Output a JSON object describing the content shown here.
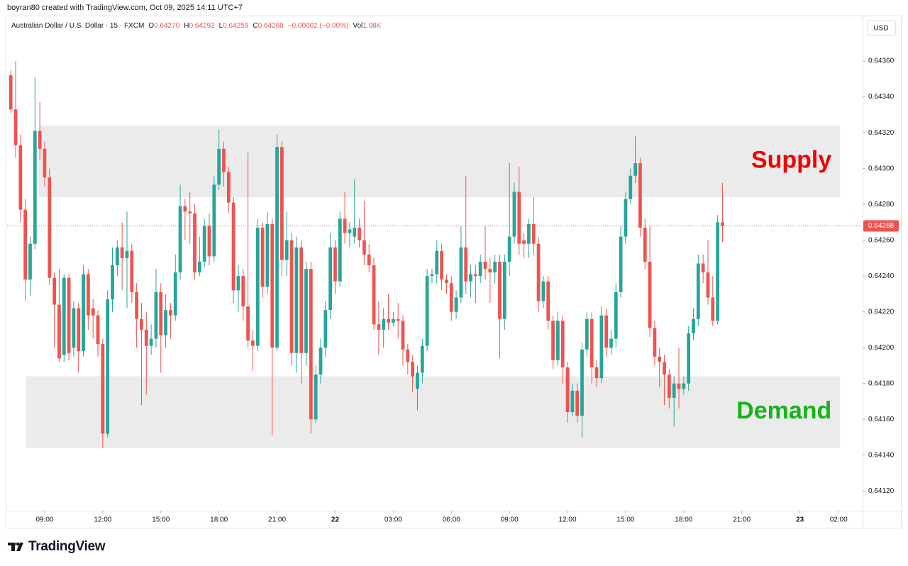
{
  "header": {
    "attribution": "boyran80 created with TradingView.com, Oct 09, 2025 14:11 UTC+7",
    "symbol": "Australian Dollar / U.S. Dollar · 15 · FXCM",
    "legend": [
      {
        "label": "O",
        "value": "0.64270"
      },
      {
        "label": "H",
        "value": "0.64292"
      },
      {
        "label": "L",
        "value": "0.64259"
      },
      {
        "label": "C",
        "value": "0.64268"
      }
    ],
    "change": "−0.00002 (−0.00%)",
    "volume": {
      "label": "Vol",
      "value": "1.08K"
    }
  },
  "currency": "USD",
  "brand": "TradingView",
  "chart_data": {
    "type": "candlestick",
    "up_color": "#26a69a",
    "down_color": "#ef5350",
    "open": [
      0.64352,
      0.64333,
      0.64313,
      0.64277,
      0.64238,
      0.64258,
      0.64321,
      0.64311,
      0.64295,
      0.64239,
      0.64224,
      0.64196,
      0.64239,
      0.642,
      0.64222,
      0.64198,
      0.64241,
      0.64222,
      0.64218,
      0.64202,
      0.64152,
      0.64227,
      0.64246,
      0.64256,
      0.6425,
      0.64254,
      0.64231,
      0.64216,
      0.6421,
      0.64201,
      0.64205,
      0.64231,
      0.64207,
      0.64221,
      0.64218,
      0.64242,
      0.64279,
      0.64276,
      0.64275,
      0.64242,
      0.64248,
      0.64268,
      0.64251,
      0.64291,
      0.64311,
      0.64298,
      0.64281,
      0.64232,
      0.6424,
      0.64223,
      0.64204,
      0.64201,
      0.64267,
      0.64234,
      0.64269,
      0.642,
      0.64312,
      0.64249,
      0.6426,
      0.64197,
      0.64256,
      0.64197,
      0.64244,
      0.6416,
      0.64185,
      0.642,
      0.64221,
      0.64256,
      0.64237,
      0.64272,
      0.64264,
      0.64262,
      0.64267,
      0.6426,
      0.64252,
      0.64246,
      0.64213,
      0.6421,
      0.64216,
      0.64214,
      0.64216,
      0.64215,
      0.64199,
      0.64192,
      0.64177,
      0.64186,
      0.64201,
      0.6424,
      0.64241,
      0.64254,
      0.64238,
      0.64236,
      0.6422,
      0.64228,
      0.64256,
      0.64237,
      0.64241,
      0.6424,
      0.64248,
      0.64244,
      0.64242,
      0.64248,
      0.64216,
      0.64248,
      0.64262,
      0.64287,
      0.6426,
      0.64258,
      0.64269,
      0.64258,
      0.64226,
      0.64237,
      0.64215,
      0.64193,
      0.64215,
      0.64189,
      0.64164,
      0.64176,
      0.64162,
      0.64199,
      0.64216,
      0.64189,
      0.64183,
      0.64218,
      0.642,
      0.64205,
      0.64231,
      0.64262,
      0.64283,
      0.64296,
      0.64303,
      0.64267,
      0.64248,
      0.64211,
      0.64195,
      0.64192,
      0.64185,
      0.64172,
      0.6418,
      0.64177,
      0.6418,
      0.64208,
      0.64216,
      0.64247,
      0.64242,
      0.64228,
      0.64215,
      0.6427
    ],
    "high": [
      0.64355,
      0.6436,
      0.64319,
      0.64283,
      0.64262,
      0.64351,
      0.64337,
      0.64315,
      0.643,
      0.64242,
      0.64244,
      0.64241,
      0.64241,
      0.64226,
      0.64225,
      0.64246,
      0.64244,
      0.64227,
      0.64221,
      0.64205,
      0.64232,
      0.64256,
      0.6426,
      0.6427,
      0.64276,
      0.64258,
      0.64236,
      0.64225,
      0.6422,
      0.64213,
      0.64244,
      0.64236,
      0.6423,
      0.64225,
      0.64252,
      0.64291,
      0.64283,
      0.64287,
      0.6428,
      0.64262,
      0.64272,
      0.64275,
      0.64296,
      0.64322,
      0.64315,
      0.64301,
      0.64284,
      0.64246,
      0.64244,
      0.64309,
      0.6421,
      0.64272,
      0.6427,
      0.64276,
      0.64272,
      0.64319,
      0.64315,
      0.64276,
      0.64264,
      0.64262,
      0.6426,
      0.64248,
      0.64248,
      0.6419,
      0.64205,
      0.64226,
      0.64264,
      0.6426,
      0.64276,
      0.64287,
      0.6427,
      0.64294,
      0.64272,
      0.64282,
      0.64258,
      0.6425,
      0.64226,
      0.64222,
      0.6423,
      0.6422,
      0.64225,
      0.64218,
      0.64202,
      0.64196,
      0.6419,
      0.64205,
      0.64244,
      0.64244,
      0.6426,
      0.64258,
      0.64241,
      0.6424,
      0.64232,
      0.64268,
      0.64296,
      0.64246,
      0.64246,
      0.64252,
      0.64268,
      0.6425,
      0.64252,
      0.64252,
      0.64252,
      0.64303,
      0.64292,
      0.64301,
      0.64264,
      0.64272,
      0.64284,
      0.64262,
      0.6424,
      0.6424,
      0.64218,
      0.6422,
      0.64218,
      0.64192,
      0.6418,
      0.6418,
      0.64203,
      0.6422,
      0.6422,
      0.64193,
      0.64223,
      0.64222,
      0.6421,
      0.64236,
      0.64268,
      0.64287,
      0.643,
      0.64318,
      0.64306,
      0.64272,
      0.64268,
      0.64215,
      0.642,
      0.64196,
      0.64188,
      0.64184,
      0.642,
      0.64184,
      0.64212,
      0.64222,
      0.64252,
      0.64252,
      0.6426,
      0.6424,
      0.64274,
      0.64292
    ],
    "low": [
      0.64331,
      0.64306,
      0.6427,
      0.64226,
      0.64229,
      0.64255,
      0.64305,
      0.6429,
      0.64235,
      0.642,
      0.64192,
      0.64192,
      0.64193,
      0.64195,
      0.64186,
      0.64195,
      0.6421,
      0.64205,
      0.64195,
      0.64144,
      0.6415,
      0.6422,
      0.6424,
      0.64232,
      0.64222,
      0.64225,
      0.642,
      0.64168,
      0.64174,
      0.64196,
      0.642,
      0.64186,
      0.642,
      0.64205,
      0.64215,
      0.64238,
      0.6426,
      0.64258,
      0.64238,
      0.6424,
      0.64245,
      0.64246,
      0.64248,
      0.64288,
      0.6429,
      0.64275,
      0.64225,
      0.6422,
      0.64215,
      0.642,
      0.64187,
      0.64198,
      0.64228,
      0.6423,
      0.64151,
      0.64198,
      0.6424,
      0.6424,
      0.6419,
      0.64186,
      0.6418,
      0.6419,
      0.64152,
      0.64158,
      0.6418,
      0.64195,
      0.64216,
      0.6423,
      0.64234,
      0.64258,
      0.64256,
      0.64258,
      0.64256,
      0.64246,
      0.64242,
      0.6421,
      0.64196,
      0.642,
      0.6421,
      0.64212,
      0.64205,
      0.6419,
      0.64185,
      0.64175,
      0.64165,
      0.6418,
      0.64198,
      0.64236,
      0.64236,
      0.64232,
      0.6423,
      0.64215,
      0.64216,
      0.64225,
      0.6423,
      0.64228,
      0.64225,
      0.64236,
      0.64238,
      0.64225,
      0.64236,
      0.64194,
      0.6421,
      0.6424,
      0.64258,
      0.64252,
      0.6425,
      0.6425,
      0.64252,
      0.6422,
      0.64222,
      0.6421,
      0.64188,
      0.6419,
      0.6418,
      0.64158,
      0.64162,
      0.64158,
      0.6415,
      0.64195,
      0.6418,
      0.64178,
      0.6418,
      0.64195,
      0.64196,
      0.642,
      0.64228,
      0.64258,
      0.6428,
      0.64292,
      0.64262,
      0.64244,
      0.64206,
      0.6419,
      0.64178,
      0.64168,
      0.64166,
      0.64156,
      0.64166,
      0.64174,
      0.64176,
      0.64204,
      0.64212,
      0.64236,
      0.64224,
      0.64212,
      0.64213,
      0.64259
    ],
    "close": [
      0.64333,
      0.64313,
      0.64277,
      0.64238,
      0.64258,
      0.64321,
      0.64311,
      0.64295,
      0.64239,
      0.64224,
      0.64194,
      0.64239,
      0.64197,
      0.64222,
      0.64198,
      0.64241,
      0.64218,
      0.64218,
      0.64202,
      0.64152,
      0.64227,
      0.64246,
      0.64256,
      0.6425,
      0.64254,
      0.64231,
      0.64216,
      0.6421,
      0.64201,
      0.64205,
      0.64231,
      0.64207,
      0.64221,
      0.64218,
      0.64242,
      0.64279,
      0.64276,
      0.64275,
      0.64242,
      0.64248,
      0.64268,
      0.64251,
      0.64291,
      0.64311,
      0.64298,
      0.64281,
      0.64232,
      0.6424,
      0.64223,
      0.64204,
      0.64201,
      0.64267,
      0.64234,
      0.64269,
      0.642,
      0.64312,
      0.64249,
      0.6426,
      0.64197,
      0.64256,
      0.64197,
      0.64244,
      0.6416,
      0.64185,
      0.642,
      0.64221,
      0.64256,
      0.64237,
      0.64272,
      0.64264,
      0.64266,
      0.64267,
      0.6426,
      0.64252,
      0.64246,
      0.64213,
      0.6421,
      0.64216,
      0.64214,
      0.64216,
      0.64215,
      0.64199,
      0.64192,
      0.64184,
      0.64186,
      0.64201,
      0.6424,
      0.64241,
      0.64254,
      0.64238,
      0.64236,
      0.6422,
      0.64228,
      0.64256,
      0.64237,
      0.64241,
      0.6424,
      0.64248,
      0.64244,
      0.64242,
      0.64248,
      0.64216,
      0.64248,
      0.64262,
      0.64287,
      0.64258,
      0.64258,
      0.64269,
      0.64258,
      0.64226,
      0.64237,
      0.64215,
      0.64193,
      0.64215,
      0.64189,
      0.64164,
      0.64176,
      0.64162,
      0.64199,
      0.64216,
      0.64189,
      0.64183,
      0.64218,
      0.642,
      0.64205,
      0.64231,
      0.64262,
      0.64283,
      0.64296,
      0.64303,
      0.64267,
      0.64248,
      0.64211,
      0.64195,
      0.64192,
      0.64185,
      0.64172,
      0.6418,
      0.64177,
      0.6418,
      0.64208,
      0.64216,
      0.64247,
      0.64242,
      0.64228,
      0.64215,
      0.6427,
      0.64268
    ],
    "xlim": [
      -0.76,
      175.8
    ],
    "xticks": [
      {
        "value": 7,
        "label": "09:00"
      },
      {
        "value": 19,
        "label": "12:00"
      },
      {
        "value": 31,
        "label": "15:00"
      },
      {
        "value": 43,
        "label": "18:00"
      },
      {
        "value": 55,
        "label": "21:00"
      },
      {
        "value": 67,
        "label": "22",
        "bold": true
      },
      {
        "value": 79,
        "label": "03:00"
      },
      {
        "value": 91,
        "label": "06:00"
      },
      {
        "value": 103,
        "label": "09:00"
      },
      {
        "value": 115,
        "label": "12:00"
      },
      {
        "value": 127,
        "label": "15:00"
      },
      {
        "value": 139,
        "label": "18:00"
      },
      {
        "value": 151,
        "label": "21:00"
      },
      {
        "value": 163,
        "label": "23",
        "bold": true
      },
      {
        "value": 171,
        "label": "02:00"
      }
    ],
    "ylim": [
      0.64109,
      0.64383
    ],
    "yticks": [
      {
        "value": 0.6436,
        "label": "0.64360"
      },
      {
        "value": 0.6434,
        "label": "0.64340"
      },
      {
        "value": 0.6432,
        "label": "0.64320"
      },
      {
        "value": 0.643,
        "label": "0.64300"
      },
      {
        "value": 0.6428,
        "label": "0.64280"
      },
      {
        "value": 0.6426,
        "label": "0.64260"
      },
      {
        "value": 0.6424,
        "label": "0.64240"
      },
      {
        "value": 0.6422,
        "label": "0.64220"
      },
      {
        "value": 0.642,
        "label": "0.64200"
      },
      {
        "value": 0.6418,
        "label": "0.64180"
      },
      {
        "value": 0.6416,
        "label": "0.64160"
      },
      {
        "value": 0.6414,
        "label": "0.64140"
      },
      {
        "value": 0.6412,
        "label": "0.64120"
      }
    ],
    "grid": false,
    "zones": [
      {
        "label": "Supply",
        "color": "#f00000",
        "fill": "#ebebeb",
        "ylim": [
          0.64284,
          0.64324
        ],
        "xlim": [
          5.8,
          171.3
        ]
      },
      {
        "label": "Demand",
        "color": "#17b31a",
        "fill": "#ebebeb",
        "ylim": [
          0.64144,
          0.64184
        ],
        "xlim": [
          3.2,
          171.3
        ]
      }
    ],
    "last_price_line": true
  }
}
